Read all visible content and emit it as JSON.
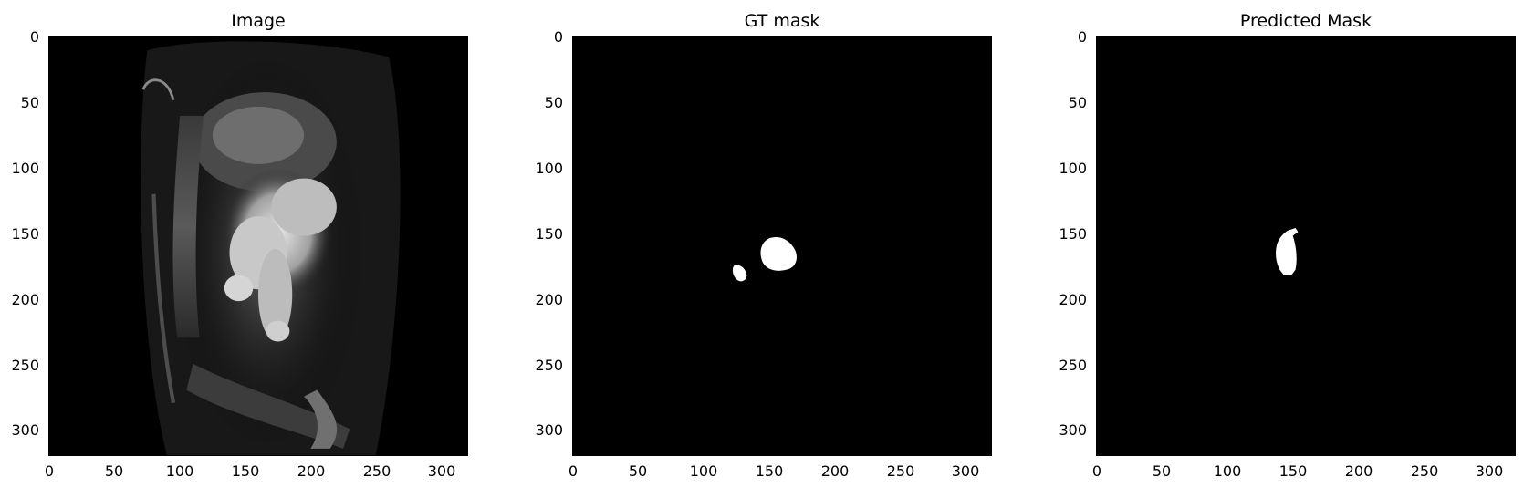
{
  "panels": [
    {
      "title": "Image"
    },
    {
      "title": "GT mask"
    },
    {
      "title": "Predicted Mask"
    }
  ],
  "axes": {
    "y_ticks": [
      "0",
      "50",
      "100",
      "150",
      "200",
      "250",
      "300"
    ],
    "x_ticks": [
      "0",
      "50",
      "100",
      "150",
      "200",
      "250",
      "300"
    ]
  },
  "colors": {
    "background": "#000000",
    "mask": "#ffffff"
  }
}
